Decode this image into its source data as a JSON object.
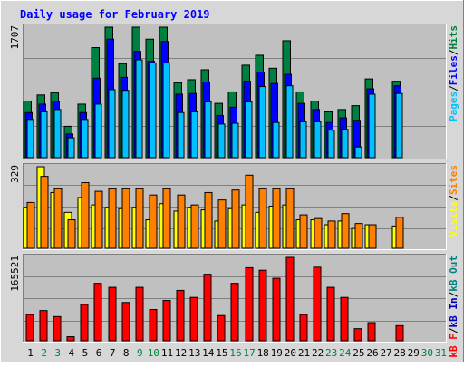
{
  "chart_data": {
    "type": "bar",
    "title": "Daily usage for February 2019",
    "colors": {
      "hits": "#008040",
      "files": "#0000ff",
      "pages": "#00c0ff",
      "visits": "#ffff00",
      "sites": "#ff8000",
      "kb_out": "#008080",
      "kb_in": "#0000c0",
      "kb_f": "#ff0000",
      "weekend_day": "#008040",
      "panel_bg": "#c0c0c0",
      "frame_bg": "#d7d7d7"
    },
    "x_ticks": [
      "1",
      "2",
      "3",
      "4",
      "5",
      "6",
      "7",
      "8",
      "9",
      "10",
      "11",
      "12",
      "13",
      "14",
      "15",
      "16",
      "17",
      "18",
      "19",
      "20",
      "21",
      "22",
      "23",
      "24",
      "25",
      "26",
      "27",
      "28",
      "29",
      "30",
      "31"
    ],
    "weekend_days": [
      "2",
      "3",
      "9",
      "10",
      "16",
      "17",
      "23",
      "24",
      "30",
      "31"
    ],
    "panels": [
      {
        "id": "hits",
        "max_label": "1707",
        "ymax": 1707,
        "right_label": [
          {
            "text": "Pages",
            "color": "#00c0ff"
          },
          {
            "text": "/",
            "color": "#000000"
          },
          {
            "text": "Files",
            "color": "#0000ff"
          },
          {
            "text": "/",
            "color": "#000000"
          },
          {
            "text": "Hits",
            "color": "#008040"
          }
        ],
        "series": [
          {
            "name": "Hits",
            "key": "hits",
            "values": [
              740,
              820,
              850,
              410,
              700,
              1440,
              1707,
              1230,
              1707,
              1550,
              1707,
              980,
              1020,
              1150,
              710,
              860,
              1210,
              1340,
              1170,
              1530,
              860,
              740,
              600,
              630,
              680,
              1030,
              0,
              1000,
              0,
              0,
              0
            ]
          },
          {
            "name": "Files",
            "key": "files",
            "values": [
              590,
              700,
              740,
              310,
              590,
              1040,
              1550,
              1050,
              1390,
              1260,
              1520,
              830,
              840,
              990,
              550,
              660,
              1000,
              1120,
              970,
              1090,
              710,
              630,
              460,
              520,
              490,
              900,
              0,
              940,
              0,
              0,
              0
            ]
          },
          {
            "name": "Pages",
            "key": "pages",
            "values": [
              500,
              600,
              630,
              260,
              500,
              700,
              890,
              880,
              1280,
              1240,
              1240,
              590,
              600,
              730,
              440,
              450,
              730,
              930,
              460,
              940,
              470,
              470,
              360,
              370,
              140,
              830,
              0,
              840,
              0,
              0,
              0
            ]
          }
        ]
      },
      {
        "id": "visits",
        "max_label": "329",
        "ymax": 329,
        "right_label": [
          {
            "text": "Visits",
            "color": "#ffff00"
          },
          {
            "text": "/",
            "color": "#000000"
          },
          {
            "text": "Sites",
            "color": "#ff8000"
          }
        ],
        "series": [
          {
            "name": "Visits",
            "key": "visits",
            "values": [
              165,
              329,
              225,
              145,
              205,
              175,
              165,
              160,
              165,
              115,
              180,
              150,
              165,
              155,
              110,
              160,
              175,
              145,
              170,
              175,
              115,
              115,
              95,
              110,
              80,
              95,
              0,
              90,
              0,
              0,
              0
            ]
          },
          {
            "name": "Sites",
            "key": "sites",
            "values": [
              185,
              290,
              240,
              115,
              265,
              230,
              240,
              240,
              240,
              215,
              240,
              215,
              175,
              225,
              195,
              235,
              295,
              240,
              240,
              240,
              135,
              120,
              110,
              140,
              100,
              95,
              0,
              125,
              0,
              0,
              0
            ]
          }
        ]
      },
      {
        "id": "kbytes",
        "max_label": "165521",
        "ymax": 165521,
        "right_label": [
          {
            "text": "kB F",
            "color": "#ff0000"
          },
          {
            "text": "/",
            "color": "#000000"
          },
          {
            "text": "kB In",
            "color": "#0000c0"
          },
          {
            "text": "/",
            "color": "#000000"
          },
          {
            "text": "kB Out",
            "color": "#008080"
          }
        ],
        "series": [
          {
            "name": "kB F",
            "key": "kb_f",
            "values": [
              52000,
              60000,
              48000,
              8000,
              72000,
              114000,
              106000,
              76000,
              106000,
              62000,
              80000,
              100000,
              86000,
              132000,
              50000,
              114000,
              145000,
              140000,
              124000,
              165521,
              52000,
              146000,
              106000,
              86000,
              24000,
              36000,
              0,
              30000,
              0,
              0,
              0
            ]
          }
        ]
      }
    ]
  }
}
